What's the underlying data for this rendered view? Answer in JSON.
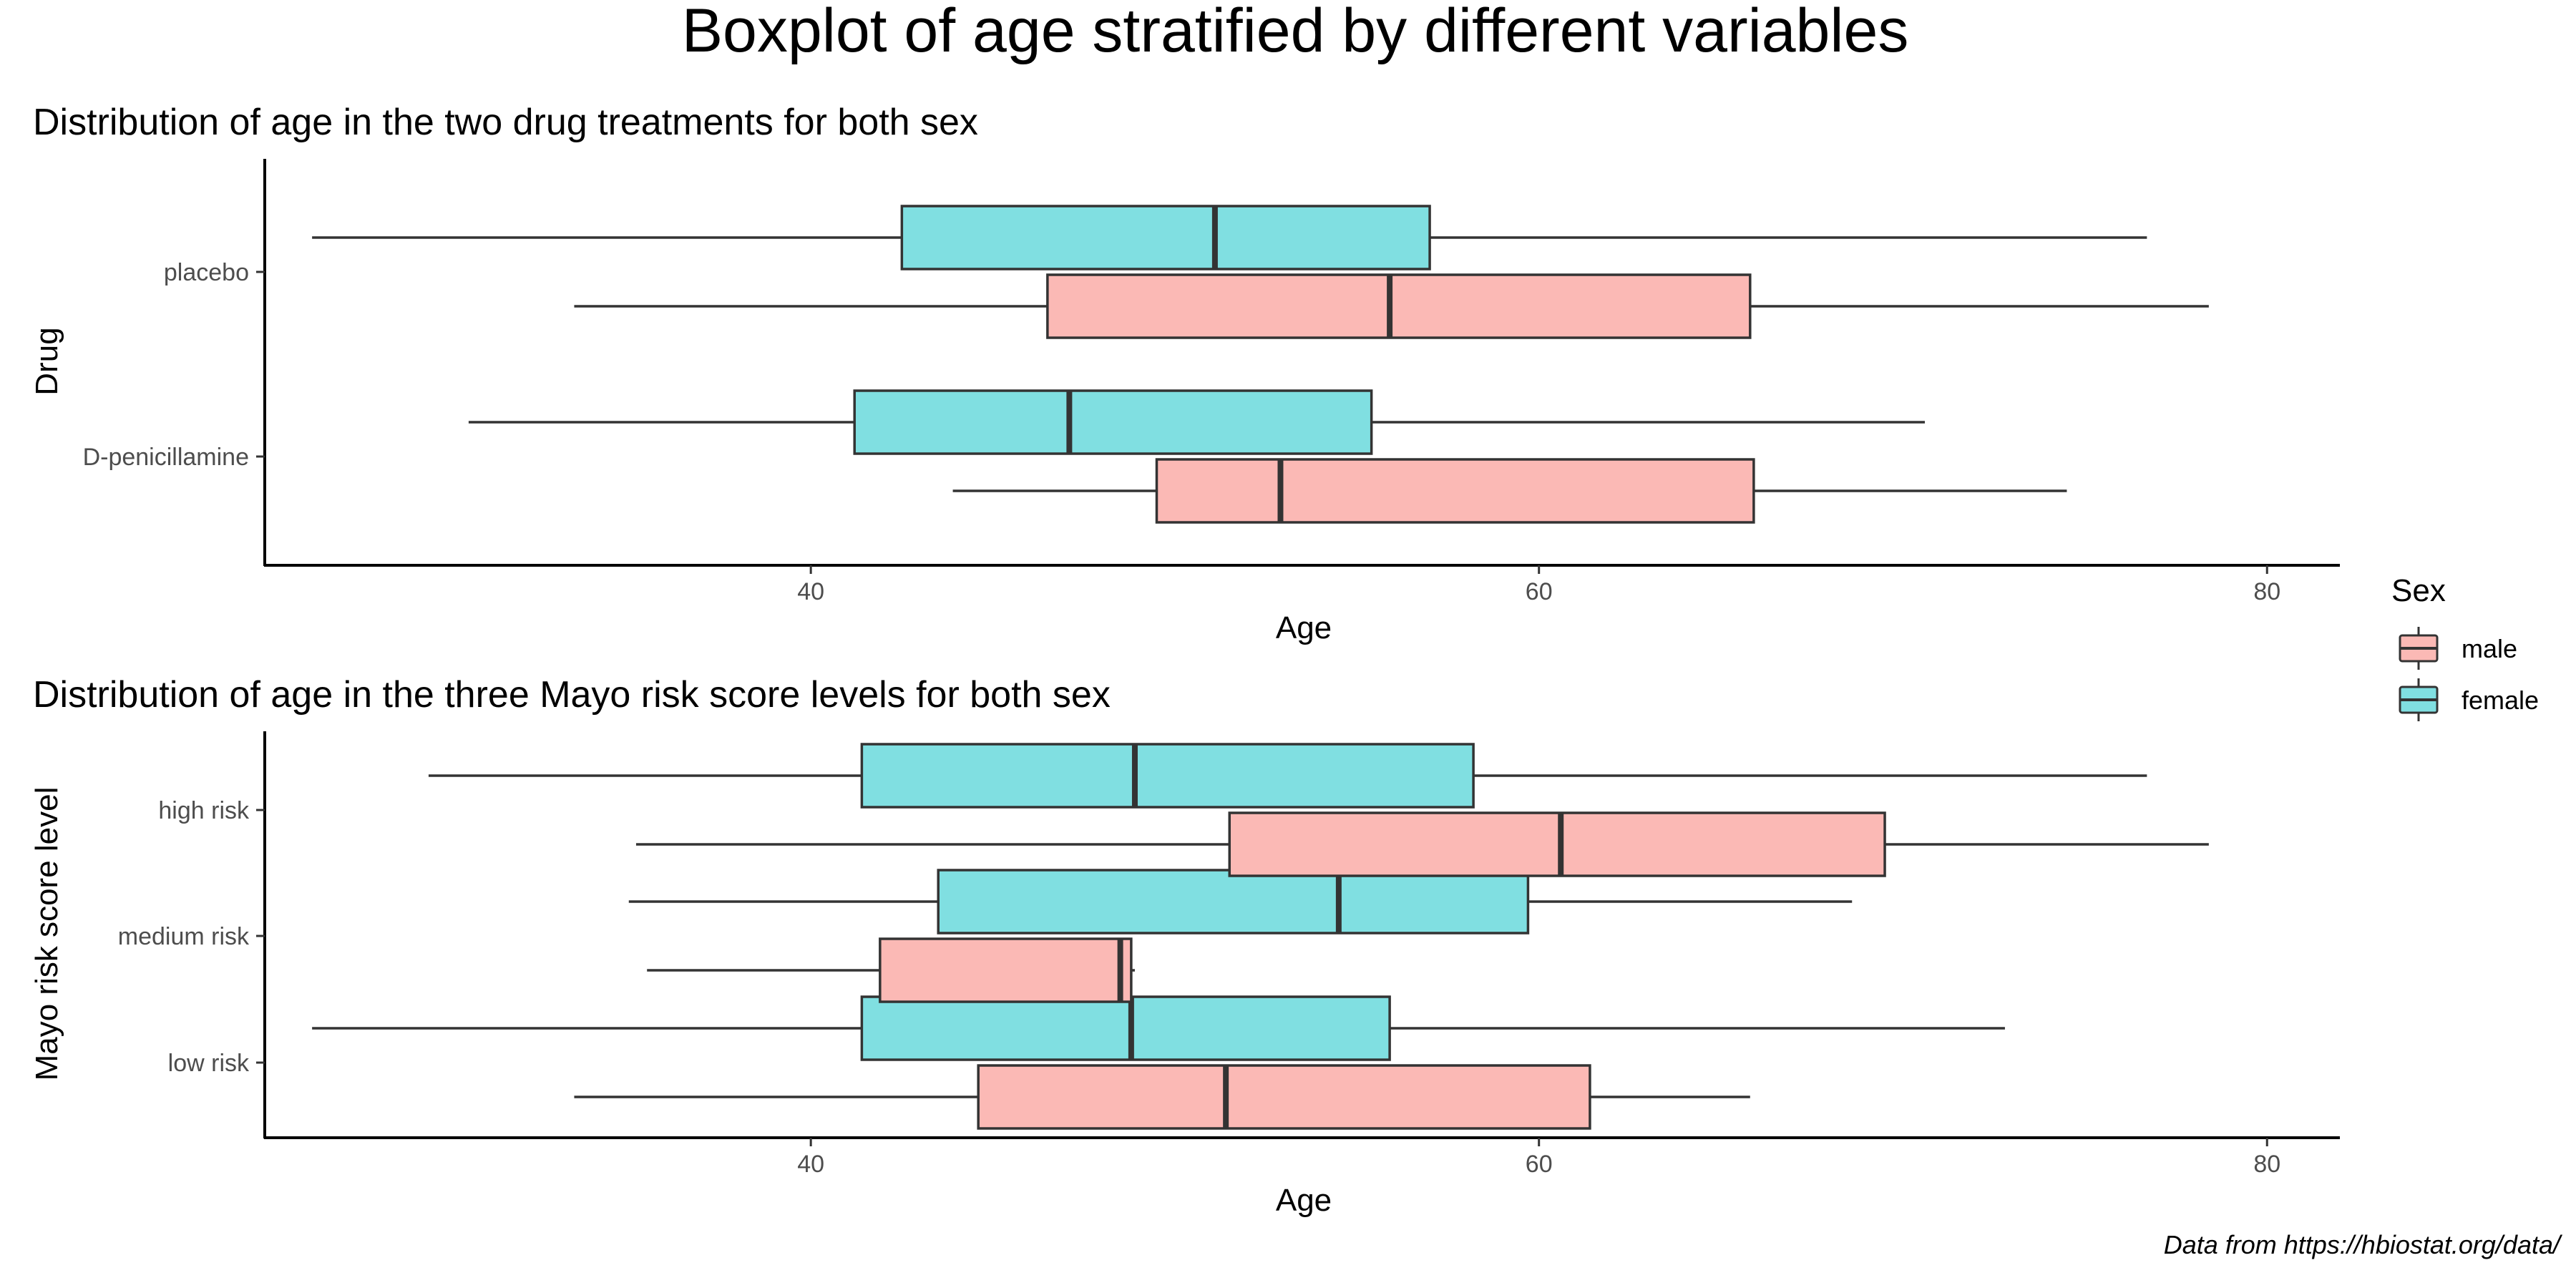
{
  "figure": {
    "title": "Boxplot of age stratified by different variables",
    "caption": "Data from https://hbiostat.org/data/"
  },
  "legend": {
    "title": "Sex",
    "placement": "right",
    "entries": [
      {
        "label": "male",
        "color": "#F8766D"
      },
      {
        "label": "female",
        "color": "#00BFC4"
      }
    ]
  },
  "colors": {
    "male_fill": "#FBB9B5",
    "female_fill": "#80DFE1",
    "stroke": "#333333"
  },
  "chart_data": [
    {
      "type": "boxplot",
      "orientation": "horizontal",
      "title": "Distribution of age in the two drug treatments for both sex",
      "xlabel": "Age",
      "ylabel": "Drug",
      "xlim": [
        25,
        82
      ],
      "xticks": [
        40,
        60,
        80
      ],
      "grid": false,
      "categories": [
        "placebo",
        "D-penicillamine"
      ],
      "series": [
        {
          "name": "female",
          "boxes": [
            {
              "category": "placebo",
              "min": 26.3,
              "q1": 42.5,
              "median": 51.1,
              "q3": 57.0,
              "max": 76.7
            },
            {
              "category": "D-penicillamine",
              "min": 30.6,
              "q1": 41.2,
              "median": 47.1,
              "q3": 55.4,
              "max": 70.6
            }
          ]
        },
        {
          "name": "male",
          "boxes": [
            {
              "category": "placebo",
              "min": 33.5,
              "q1": 46.5,
              "median": 55.9,
              "q3": 65.8,
              "max": 78.4
            },
            {
              "category": "D-penicillamine",
              "min": 43.9,
              "q1": 49.5,
              "median": 52.9,
              "q3": 65.9,
              "max": 74.5
            }
          ]
        }
      ]
    },
    {
      "type": "boxplot",
      "orientation": "horizontal",
      "title": "Distribution of age in the three Mayo risk score levels for both sex",
      "xlabel": "Age",
      "ylabel": "Mayo risk score level",
      "xlim": [
        25,
        82
      ],
      "xticks": [
        40,
        60,
        80
      ],
      "grid": false,
      "categories": [
        "high risk",
        "medium risk",
        "low risk"
      ],
      "series": [
        {
          "name": "female",
          "boxes": [
            {
              "category": "high risk",
              "min": 29.5,
              "q1": 41.4,
              "median": 48.9,
              "q3": 58.2,
              "max": 76.7
            },
            {
              "category": "medium risk",
              "min": 35.0,
              "q1": 43.5,
              "median": 54.5,
              "q3": 59.7,
              "max": 68.6
            },
            {
              "category": "low risk",
              "min": 26.3,
              "q1": 41.4,
              "median": 48.8,
              "q3": 55.9,
              "max": 72.8
            }
          ]
        },
        {
          "name": "male",
          "boxes": [
            {
              "category": "high risk",
              "min": 35.2,
              "q1": 51.5,
              "median": 60.6,
              "q3": 69.5,
              "max": 78.4
            },
            {
              "category": "medium risk",
              "min": 35.5,
              "q1": 41.9,
              "median": 48.5,
              "q3": 48.8,
              "max": 48.9
            },
            {
              "category": "low risk",
              "min": 33.5,
              "q1": 44.6,
              "median": 51.4,
              "q3": 61.4,
              "max": 65.8
            }
          ]
        }
      ]
    }
  ]
}
